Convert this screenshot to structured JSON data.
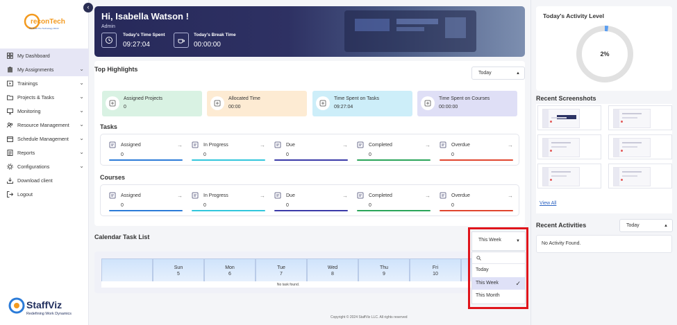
{
  "sidebar": {
    "brand_top": "reconTech",
    "brand_top_tagline": "We Build The Technology World",
    "items": [
      {
        "label": "My Dashboard",
        "icon": "grid-icon",
        "active": true,
        "chevron": false
      },
      {
        "label": "My Assignments",
        "icon": "clipboard-icon",
        "active": true,
        "chevron": true
      },
      {
        "label": "Trainings",
        "icon": "play-icon",
        "active": false,
        "chevron": true
      },
      {
        "label": "Projects & Tasks",
        "icon": "folder-icon",
        "active": false,
        "chevron": true
      },
      {
        "label": "Monitoring",
        "icon": "monitor-icon",
        "active": false,
        "chevron": true
      },
      {
        "label": "Resource Management",
        "icon": "users-icon",
        "active": false,
        "chevron": true
      },
      {
        "label": "Schedule Management",
        "icon": "calendar-icon",
        "active": false,
        "chevron": true
      },
      {
        "label": "Reports",
        "icon": "report-icon",
        "active": false,
        "chevron": true
      },
      {
        "label": "Configurations",
        "icon": "gear-icon",
        "active": false,
        "chevron": true
      },
      {
        "label": "Download client",
        "icon": "download-icon",
        "active": false,
        "chevron": false
      },
      {
        "label": "Logout",
        "icon": "logout-icon",
        "active": false,
        "chevron": false
      }
    ],
    "brand_bottom": "StaffViz",
    "brand_bottom_tagline": "Redefining Work Dynamics"
  },
  "hero": {
    "greeting": "Hi, Isabella Watson !",
    "role": "Admin",
    "time_spent_label": "Today's Time Spent",
    "time_spent_value": "09:27:04",
    "break_time_label": "Today's Break Time",
    "break_time_value": "00:00:00"
  },
  "highlights": {
    "title": "Top Highlights",
    "filter": "Today",
    "cards": [
      {
        "label": "Assigned Projects",
        "value": "0",
        "bg": "#d9f2e3",
        "icon": "project-icon"
      },
      {
        "label": "Allocated Time",
        "value": "00:00",
        "bg": "#fdebd3",
        "icon": "clock-icon"
      },
      {
        "label": "Time Spent on Tasks",
        "value": "09:27:04",
        "bg": "#cdeef9",
        "icon": "timer-icon"
      },
      {
        "label": "Time Spent on Courses",
        "value": "00:00:00",
        "bg": "#dfdff6",
        "icon": "course-time-icon"
      }
    ]
  },
  "tasks": {
    "title": "Tasks",
    "items": [
      {
        "label": "Assigned",
        "value": "0",
        "color": "#2b7bd8",
        "icon": "assigned-icon"
      },
      {
        "label": "In Progress",
        "value": "0",
        "color": "#31c6dc",
        "icon": "progress-icon"
      },
      {
        "label": "Due",
        "value": "0",
        "color": "#3a3aa8",
        "icon": "due-icon"
      },
      {
        "label": "Completed",
        "value": "0",
        "color": "#2aa55a",
        "icon": "completed-icon"
      },
      {
        "label": "Overdue",
        "value": "0",
        "color": "#e0452e",
        "icon": "overdue-icon"
      }
    ]
  },
  "courses": {
    "title": "Courses",
    "items": [
      {
        "label": "Assigned",
        "value": "0",
        "color": "#2b7bd8",
        "icon": "assigned-icon"
      },
      {
        "label": "In Progress",
        "value": "0",
        "color": "#31c6dc",
        "icon": "progress-icon"
      },
      {
        "label": "Due",
        "value": "0",
        "color": "#3a3aa8",
        "icon": "due-icon"
      },
      {
        "label": "Completed",
        "value": "0",
        "color": "#2aa55a",
        "icon": "completed-icon"
      },
      {
        "label": "Overdue",
        "value": "0",
        "color": "#e0452e",
        "icon": "overdue-icon"
      }
    ]
  },
  "calendar": {
    "title": "Calendar Task List",
    "range": "This Week",
    "days": [
      {
        "day": "",
        "date": ""
      },
      {
        "day": "Sun",
        "date": "5"
      },
      {
        "day": "Mon",
        "date": "6"
      },
      {
        "day": "Tue",
        "date": "7"
      },
      {
        "day": "Wed",
        "date": "8"
      },
      {
        "day": "Thu",
        "date": "9"
      },
      {
        "day": "Fri",
        "date": "10"
      },
      {
        "day": "",
        "date": ""
      }
    ],
    "empty": "No task found.",
    "menu_options": [
      {
        "label": "Today",
        "selected": false
      },
      {
        "label": "This Week",
        "selected": true
      },
      {
        "label": "This Month",
        "selected": false
      }
    ]
  },
  "activity": {
    "title": "Today's Activity Level",
    "value": "2%",
    "percent": 2,
    "ring_color": "#e1e1e1",
    "fill_color": "#5b9ef0"
  },
  "screenshots": {
    "title": "Recent Screenshots",
    "view_all": "View All",
    "count": 6
  },
  "recent_activities": {
    "title": "Recent Activities",
    "filter": "Today",
    "empty": "No Activity Found."
  },
  "footer": "Copyright © 2024 StaffViz LLC. All rights reserved"
}
